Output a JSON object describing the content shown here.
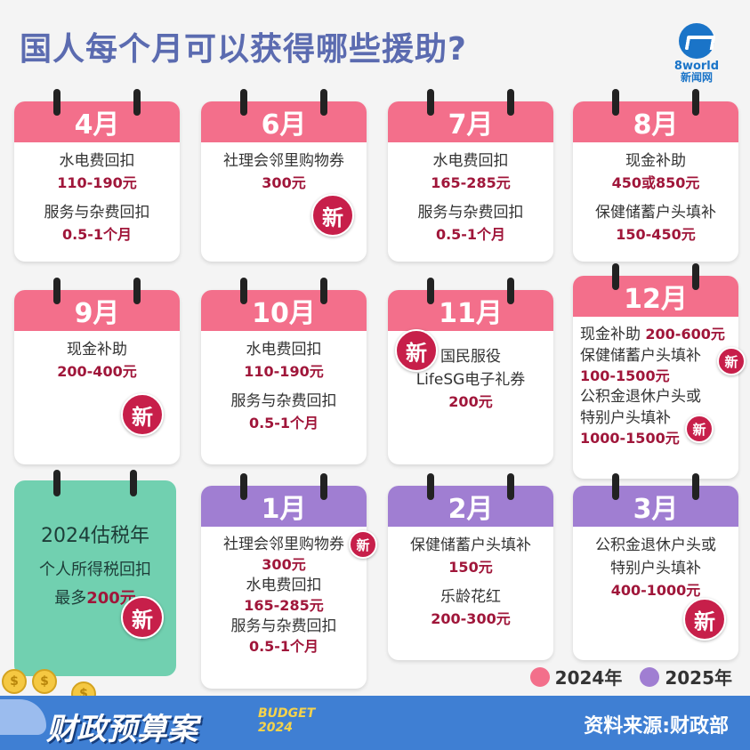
{
  "header": {
    "title": "国人每个月可以获得哪些援助?",
    "logo_text": "8world",
    "logo_sub": "新闻网"
  },
  "new_label": "新",
  "cards": [
    {
      "month": "4月",
      "lines": [
        [
          "水电费回扣",
          "110-190元"
        ],
        [
          "服务与杂费回扣",
          "0.5-1个月"
        ]
      ]
    },
    {
      "month": "6月",
      "lines": [
        [
          "社理会邻里购物券",
          "300元"
        ]
      ]
    },
    {
      "month": "7月",
      "lines": [
        [
          "水电费回扣",
          "165-285元"
        ],
        [
          "服务与杂费回扣",
          "0.5-1个月"
        ]
      ]
    },
    {
      "month": "8月",
      "lines": [
        [
          "现金补助",
          "450或850元"
        ],
        [
          "保健储蓄户头填补",
          "150-450元"
        ]
      ]
    },
    {
      "month": "9月",
      "lines": [
        [
          "现金补助",
          "200-400元"
        ]
      ]
    },
    {
      "month": "10月",
      "lines": [
        [
          "水电费回扣",
          "110-190元"
        ],
        [
          "服务与杂费回扣",
          "0.5-1个月"
        ]
      ]
    },
    {
      "month": "11月",
      "lines": [
        [
          "国民服役",
          "LifeSG电子礼券",
          "200元"
        ]
      ]
    },
    {
      "month": "12月",
      "lines": [
        [
          "现金补助",
          "200-600元"
        ],
        [
          "保健储蓄户头填补",
          "100-1500元"
        ],
        [
          "公积金退休户头或",
          "特别户头填补",
          "1000-1500元"
        ]
      ]
    },
    {
      "month": "1月",
      "lines": [
        [
          "社理会邻里购物券",
          "300元"
        ],
        [
          "水电费回扣",
          "165-285元"
        ],
        [
          "服务与杂费回扣",
          "0.5-1个月"
        ]
      ]
    },
    {
      "month": "2月",
      "lines": [
        [
          "保健储蓄户头填补",
          "150元"
        ],
        [
          "乐龄花红",
          "200-300元"
        ]
      ]
    },
    {
      "month": "3月",
      "lines": [
        [
          "公积金退休户头或",
          "特别户头填补",
          "400-1000元"
        ]
      ]
    }
  ],
  "tax_card": {
    "line1": "2024估税年",
    "line2": "个人所得税回扣",
    "line3_prefix": "最多",
    "line3_amount": "200元"
  },
  "legend": [
    {
      "label": "2024年",
      "color": "#f36f8b"
    },
    {
      "label": "2025年",
      "color": "#a07ed2"
    }
  ],
  "footer": {
    "title": "财政预算案",
    "budget": "BUDGET",
    "year": "2024",
    "source": "资料来源:财政部",
    "coin_symbol": "$"
  },
  "colors": {
    "title": "#5b6bb0",
    "pink": "#f36f8b",
    "purple": "#a07ed2",
    "teal": "#71d0b0",
    "amount": "#a0163a",
    "new_badge": "#c71f4a",
    "footer": "#3f7fd3"
  }
}
